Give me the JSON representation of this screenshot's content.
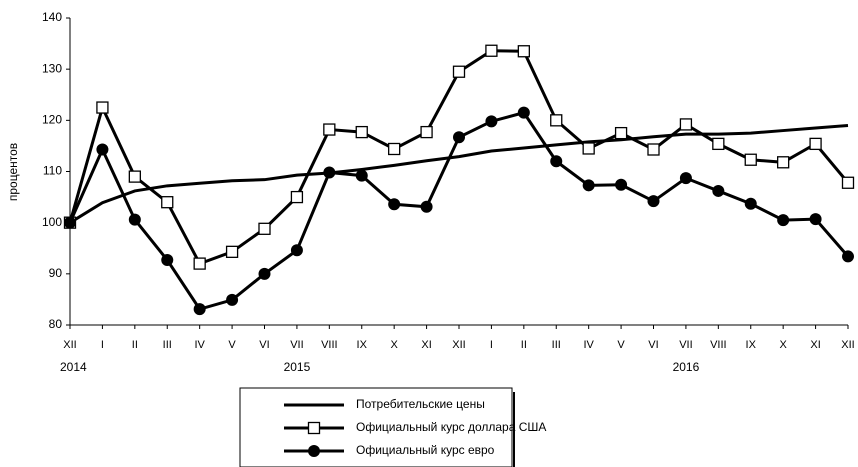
{
  "chart_data": {
    "type": "line",
    "ylabel": "процентов",
    "categories": [
      "XII",
      "I",
      "II",
      "III",
      "IV",
      "V",
      "VI",
      "VII",
      "VIII",
      "IX",
      "X",
      "XI",
      "XII",
      "I",
      "II",
      "III",
      "IV",
      "V",
      "VI",
      "VII",
      "VIII",
      "IX",
      "X",
      "XI",
      "XII"
    ],
    "x_group_labels": [
      "2014",
      "2015",
      "2016"
    ],
    "ylim": [
      80,
      140
    ],
    "yticks": [
      80,
      90,
      100,
      110,
      120,
      130,
      140
    ],
    "grid": false,
    "series": [
      {
        "name": "Потребительские цены",
        "color": "#000000",
        "marker": "none",
        "values": [
          100,
          103.9,
          106.2,
          107.2,
          107.7,
          108.2,
          108.4,
          109.3,
          109.7,
          110.4,
          111.2,
          112.1,
          112.9,
          114.0,
          114.6,
          115.2,
          115.8,
          116.2,
          116.8,
          117.3,
          117.3,
          117.5,
          118.0,
          118.5,
          119.0
        ]
      },
      {
        "name": "Официальный курс доллара США",
        "color": "#000000",
        "marker": "square",
        "values": [
          100,
          122.5,
          109,
          104,
          92,
          94.3,
          98.8,
          105,
          118.2,
          117.7,
          114.4,
          117.7,
          129.5,
          133.6,
          133.5,
          120,
          114.5,
          117.5,
          114.3,
          119.2,
          115.4,
          112.3,
          111.8,
          115.4,
          107.8
        ]
      },
      {
        "name": "Официальный курс евро",
        "color": "#000000",
        "marker": "circle",
        "values": [
          100,
          114.3,
          100.6,
          92.7,
          83.1,
          84.9,
          90,
          94.6,
          109.8,
          109.2,
          103.6,
          103.1,
          116.7,
          119.8,
          121.5,
          112,
          107.3,
          107.4,
          104.2,
          108.7,
          106.2,
          103.7,
          100.5,
          100.7,
          93.4
        ]
      }
    ]
  }
}
